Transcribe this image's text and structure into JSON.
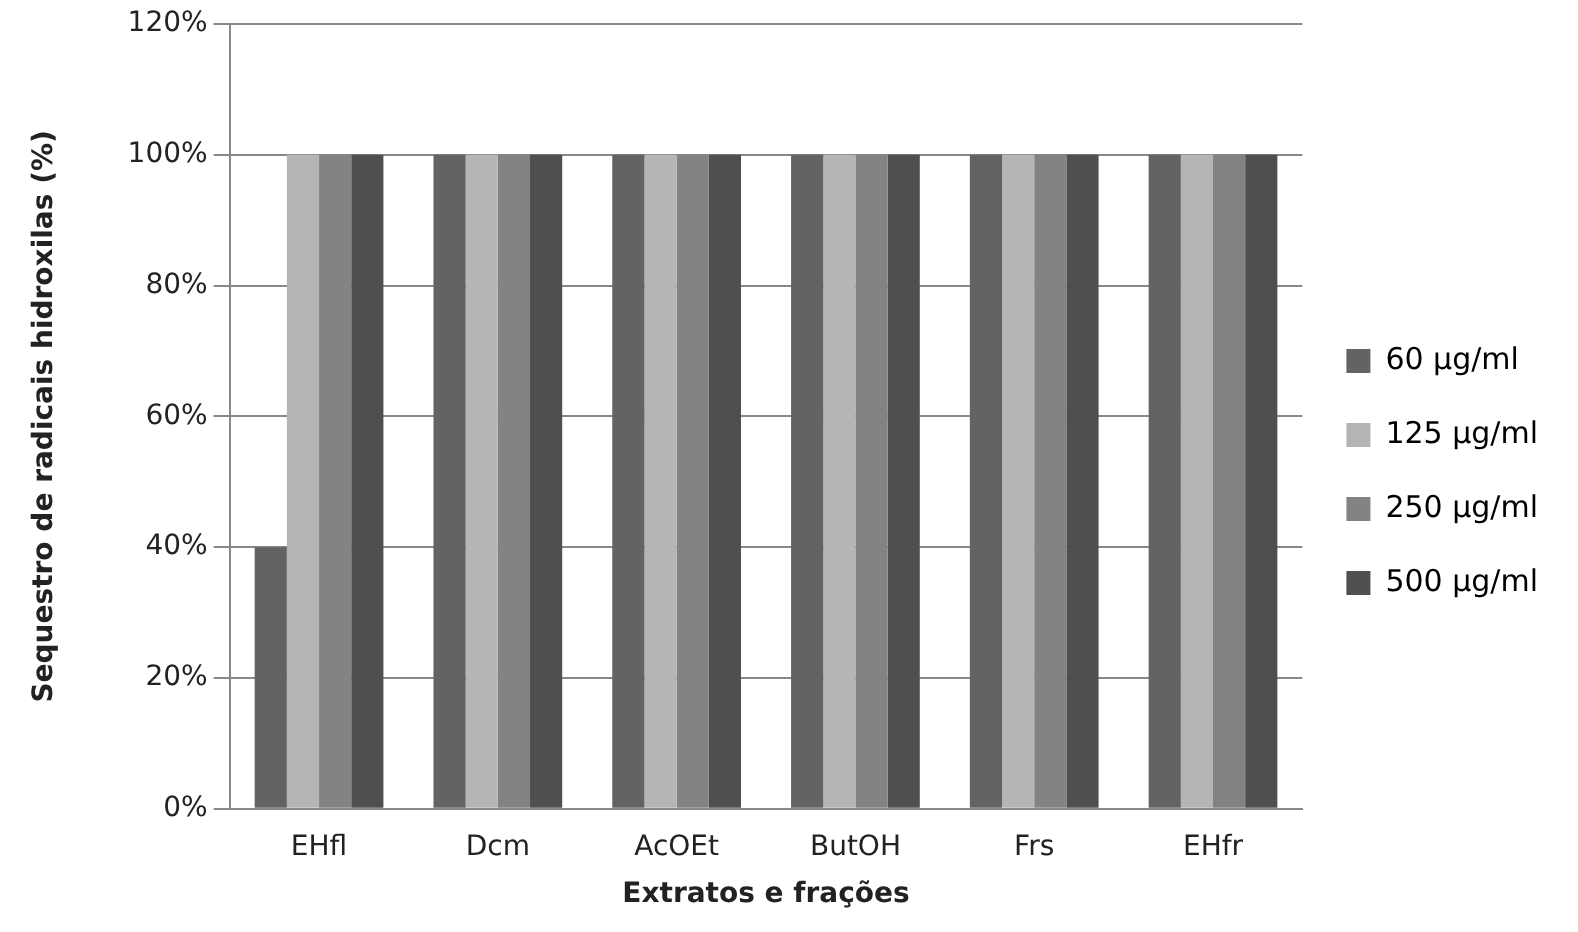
{
  "chart_data": {
    "type": "bar",
    "xlabel": "Extratos e frações",
    "ylabel": "Sequestro de radicais hidroxilas (%)",
    "categories": [
      "EHfl",
      "Dcm",
      "AcOEt",
      "ButOH",
      "Frs",
      "EHfr"
    ],
    "series": [
      {
        "name": "60 µg/ml",
        "color": "#636363",
        "values": [
          40,
          100,
          100,
          100,
          100,
          100
        ]
      },
      {
        "name": "125 µg/ml",
        "color": "#b5b5b5",
        "values": [
          100,
          100,
          100,
          100,
          100,
          100
        ]
      },
      {
        "name": "250 µg/ml",
        "color": "#838383",
        "values": [
          100,
          100,
          100,
          100,
          100,
          100
        ]
      },
      {
        "name": "500 µg/ml",
        "color": "#4f4f4f",
        "values": [
          100,
          100,
          100,
          100,
          100,
          100
        ]
      }
    ],
    "ylim": [
      0,
      120
    ],
    "yticks": [
      {
        "value": 0,
        "label": "0%"
      },
      {
        "value": 20,
        "label": "20%"
      },
      {
        "value": 40,
        "label": "40%"
      },
      {
        "value": 60,
        "label": "60%"
      },
      {
        "value": 80,
        "label": "80%"
      },
      {
        "value": 100,
        "label": "100%"
      },
      {
        "value": 120,
        "label": "120%"
      }
    ],
    "grid": "y",
    "legend": "right"
  }
}
